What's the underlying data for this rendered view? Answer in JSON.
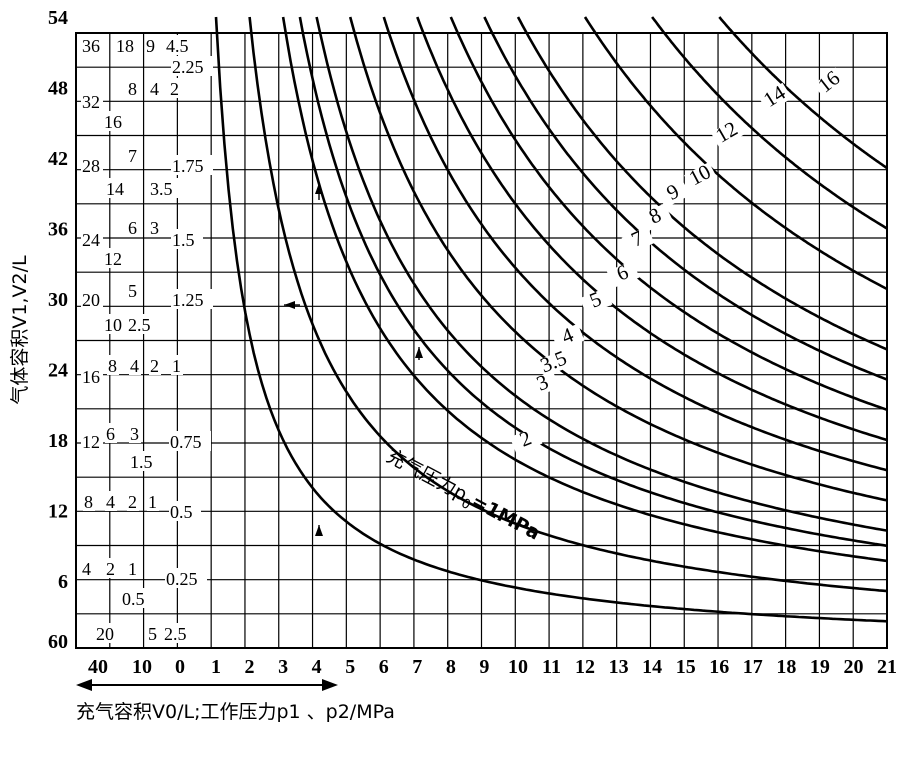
{
  "chart_data": {
    "type": "line",
    "xlabel": "充气容积V0/L;工作压力p1 、p2/MPa",
    "ylabel": "气体容积V1,V2/L",
    "xlim": [
      1,
      21
    ],
    "ylim": [
      6,
      54
    ],
    "x_ticks": [
      "1",
      "2",
      "3",
      "4",
      "5",
      "6",
      "7",
      "8",
      "9",
      "10",
      "11",
      "12",
      "13",
      "14",
      "15",
      "16",
      "17",
      "18",
      "19",
      "20",
      "21"
    ],
    "y_ticks": [
      "6",
      "12",
      "18",
      "24",
      "30",
      "36",
      "42",
      "48",
      "54"
    ],
    "extra_y_tick": "60",
    "extra_x_ticks": [
      "40",
      "10",
      "0"
    ],
    "curve_label_prefix": "充气压力p",
    "curve_label_sub": "0",
    "curve_label_suffix": "=1MPa",
    "series": [
      {
        "name": "1",
        "label": "充气压力p0=1MPa",
        "k": 54
      },
      {
        "name": "2",
        "label": "2",
        "k": 108
      },
      {
        "name": "3",
        "label": "3",
        "k": 162
      },
      {
        "name": "3.5",
        "label": "3.5",
        "k": 189
      },
      {
        "name": "4",
        "label": "4",
        "k": 216
      },
      {
        "name": "5",
        "label": "5",
        "k": 270
      },
      {
        "name": "6",
        "label": "6",
        "k": 324
      },
      {
        "name": "7",
        "label": "7",
        "k": 378
      },
      {
        "name": "8",
        "label": "8",
        "k": 432
      },
      {
        "name": "9",
        "label": "9",
        "k": 486
      },
      {
        "name": "10",
        "label": "10",
        "k": 540
      },
      {
        "name": "12",
        "label": "12",
        "k": 648
      },
      {
        "name": "14",
        "label": "14",
        "k": 756
      },
      {
        "name": "16",
        "label": "16",
        "k": 864
      }
    ],
    "left_scale_labels": [
      "36",
      "18",
      "9",
      "4.5",
      "2.25",
      "32",
      "8",
      "4",
      "2",
      "16",
      "28",
      "7",
      "1.75",
      "14",
      "3.5",
      "24",
      "6",
      "3",
      "1.5",
      "12",
      "20",
      "5",
      "1.25",
      "10",
      "2.5",
      "16",
      "8",
      "4",
      "2",
      "1",
      "12",
      "6",
      "3",
      "1.5",
      "0.75",
      "8",
      "4",
      "2",
      "1",
      "0.5",
      "4",
      "2",
      "1",
      "0.5",
      "0.25",
      "20",
      "5",
      "2.5"
    ],
    "arrow_direction": "up",
    "grid": true
  }
}
